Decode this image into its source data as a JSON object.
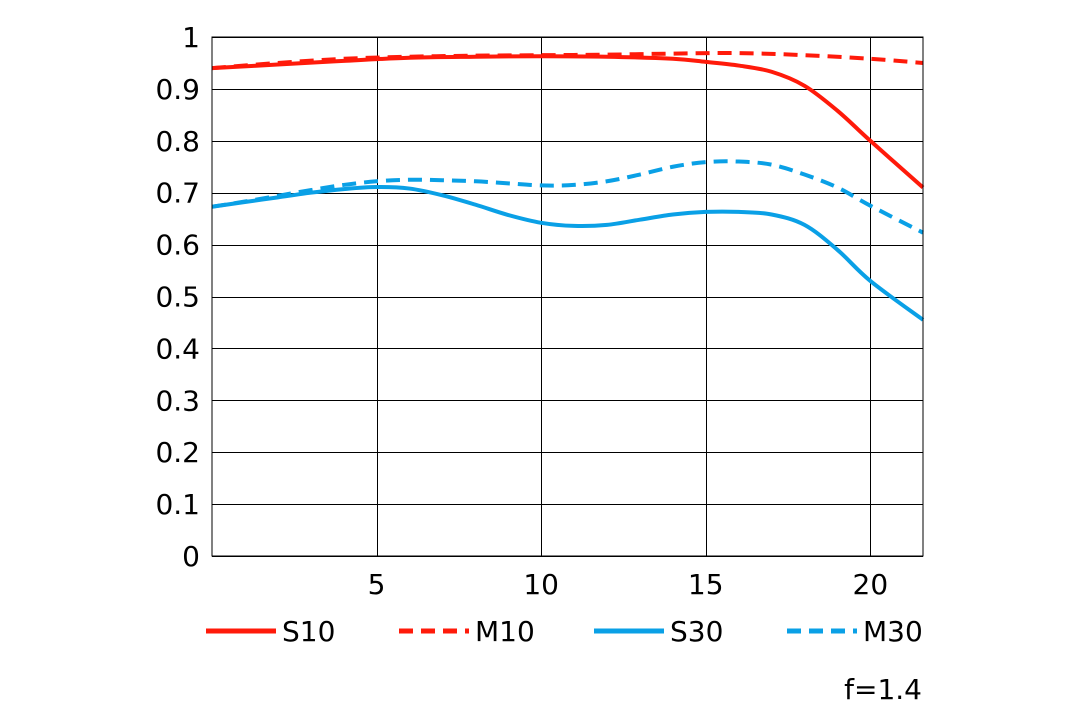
{
  "chart_data": {
    "type": "line",
    "xlim": [
      0,
      21.6
    ],
    "ylim": [
      0,
      1
    ],
    "x_ticks": [
      5,
      10,
      15,
      20
    ],
    "y_ticks": [
      0,
      0.1,
      0.2,
      0.3,
      0.4,
      0.5,
      0.6,
      0.7,
      0.8,
      0.9,
      1
    ],
    "x_tick_labels": [
      "5",
      "10",
      "15",
      "20"
    ],
    "y_tick_labels": [
      "0",
      "0.1",
      "0.2",
      "0.3",
      "0.4",
      "0.5",
      "0.6",
      "0.7",
      "0.8",
      "0.9",
      "1"
    ],
    "grid": true,
    "legend_position": "bottom",
    "note": "f=1.4",
    "series": [
      {
        "name": "S10",
        "color": "#ff1a0a",
        "style": "solid",
        "x": [
          0,
          2,
          4,
          6,
          8,
          10,
          12,
          14,
          15,
          16,
          17,
          18,
          19,
          20,
          21.6
        ],
        "y": [
          0.94,
          0.947,
          0.954,
          0.96,
          0.962,
          0.963,
          0.962,
          0.958,
          0.952,
          0.945,
          0.933,
          0.906,
          0.858,
          0.8,
          0.71
        ]
      },
      {
        "name": "M10",
        "color": "#ff1a0a",
        "style": "dashed",
        "x": [
          0,
          2,
          4,
          6,
          8,
          10,
          12,
          14,
          16,
          18,
          20,
          21.6
        ],
        "y": [
          0.94,
          0.95,
          0.958,
          0.962,
          0.964,
          0.965,
          0.966,
          0.968,
          0.969,
          0.965,
          0.958,
          0.95
        ]
      },
      {
        "name": "S30",
        "color": "#0aa0e6",
        "style": "solid",
        "x": [
          0,
          1,
          2,
          3,
          4,
          5,
          6,
          7,
          8,
          9,
          10,
          11,
          12,
          13,
          14,
          15,
          16,
          17,
          18,
          19,
          20,
          21.6
        ],
        "y": [
          0.673,
          0.682,
          0.691,
          0.7,
          0.707,
          0.711,
          0.708,
          0.695,
          0.677,
          0.657,
          0.642,
          0.636,
          0.638,
          0.648,
          0.658,
          0.663,
          0.663,
          0.658,
          0.638,
          0.59,
          0.53,
          0.455
        ]
      },
      {
        "name": "M30",
        "color": "#0aa0e6",
        "style": "dashed",
        "x": [
          0,
          1,
          2,
          3,
          4,
          5,
          6,
          7,
          8,
          9,
          10,
          11,
          12,
          13,
          14,
          15,
          16,
          17,
          18,
          19,
          20,
          21.6
        ],
        "y": [
          0.673,
          0.683,
          0.694,
          0.705,
          0.715,
          0.722,
          0.725,
          0.724,
          0.722,
          0.718,
          0.714,
          0.715,
          0.722,
          0.735,
          0.75,
          0.759,
          0.76,
          0.754,
          0.735,
          0.71,
          0.675,
          0.623
        ]
      }
    ]
  }
}
